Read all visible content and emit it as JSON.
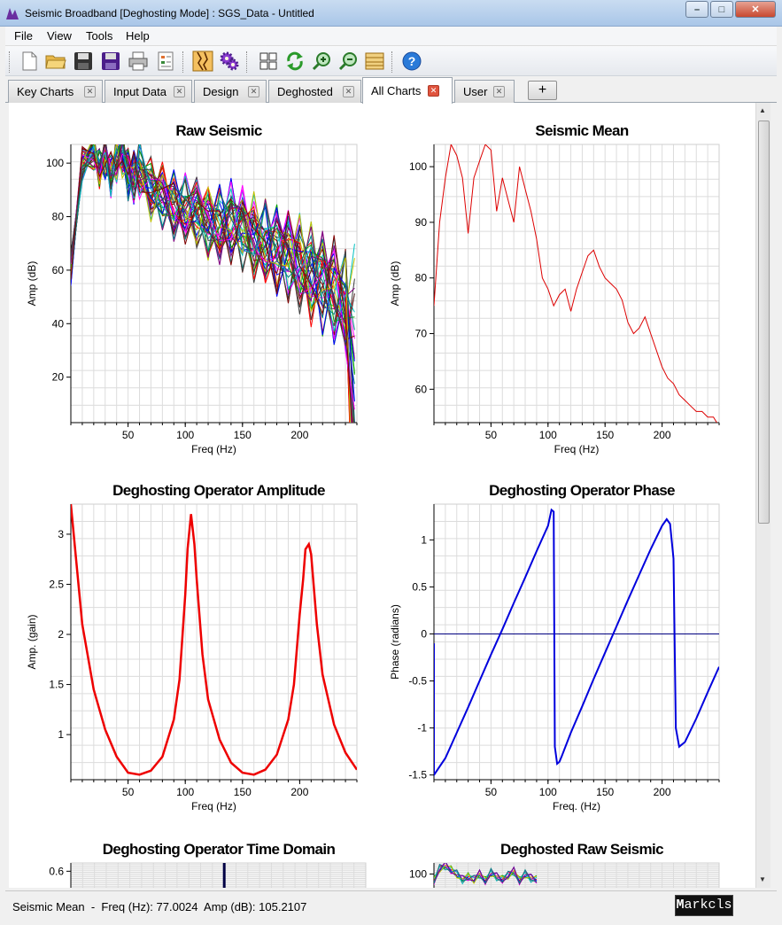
{
  "window": {
    "title": "Seismic Broadband [Deghosting Mode] : SGS_Data - Untitled"
  },
  "menu": [
    "File",
    "View",
    "Tools",
    "Help"
  ],
  "toolbar_icons": [
    "new-file-icon",
    "open-folder-icon",
    "save-icon",
    "save-as-icon",
    "print-icon",
    "properties-icon",
    "seismic-trace-icon",
    "settings-gears-icon",
    "grid-layout-icon",
    "refresh-icon",
    "zoom-in-icon",
    "zoom-out-icon",
    "layers-icon",
    "help-icon"
  ],
  "tabs": [
    {
      "label": "Key Charts",
      "active": false
    },
    {
      "label": "Input Data",
      "active": false
    },
    {
      "label": "Design",
      "active": false
    },
    {
      "label": "Deghosted",
      "active": false
    },
    {
      "label": "All Charts",
      "active": true
    },
    {
      "label": "User",
      "active": false
    }
  ],
  "tab_add_label": "+",
  "status": {
    "text": "Seismic Mean  -  Freq (Hz): 77.0024  Amp (dB): 105.2107",
    "logo": "arkcls"
  },
  "colors": {
    "raw_series": [
      "#ff0000",
      "#00a000",
      "#0000ff",
      "#ff00ff",
      "#00c0c0",
      "#c0c000",
      "#800080",
      "#008080",
      "#800000",
      "#404040"
    ],
    "mean": "#dd0000",
    "amplitude": "#ee0000",
    "phase": "#0000dd",
    "accent": "#c9dcf1"
  },
  "chart_data": [
    {
      "type": "line",
      "title": "Raw Seismic",
      "xlabel": "Freq (Hz)",
      "ylabel": "Amp (dB)",
      "xlim": [
        0,
        250
      ],
      "ylim": [
        3,
        107
      ],
      "xticks": [
        50,
        100,
        150,
        200
      ],
      "yticks": [
        20,
        40,
        60,
        80,
        100
      ],
      "series_count": 40,
      "x": [
        0,
        10,
        20,
        25,
        30,
        35,
        40,
        45,
        50,
        55,
        60,
        70,
        80,
        90,
        100,
        110,
        120,
        130,
        140,
        150,
        160,
        170,
        180,
        190,
        200,
        210,
        220,
        230,
        240,
        248
      ],
      "y": [
        60,
        100,
        104,
        98,
        102,
        96,
        102,
        104,
        96,
        95,
        98,
        90,
        88,
        84,
        83,
        82,
        78,
        77,
        78,
        76,
        72,
        70,
        67,
        66,
        62,
        58,
        56,
        52,
        48,
        5
      ]
    },
    {
      "type": "line",
      "title": "Seismic Mean",
      "xlabel": "Freq (Hz)",
      "ylabel": "Amp (dB)",
      "xlim": [
        0,
        250
      ],
      "ylim": [
        54,
        104
      ],
      "xticks": [
        50,
        100,
        150,
        200
      ],
      "yticks": [
        60,
        70,
        80,
        90,
        100
      ],
      "x": [
        0,
        5,
        10,
        15,
        20,
        25,
        30,
        35,
        40,
        45,
        50,
        55,
        60,
        65,
        70,
        75,
        80,
        85,
        90,
        95,
        100,
        105,
        110,
        115,
        120,
        125,
        130,
        135,
        140,
        145,
        150,
        155,
        160,
        165,
        170,
        175,
        180,
        185,
        190,
        195,
        200,
        205,
        210,
        215,
        220,
        225,
        230,
        235,
        240,
        245,
        248
      ],
      "y": [
        75,
        90,
        98,
        104,
        102,
        98,
        88,
        98,
        101,
        104,
        103,
        92,
        98,
        94,
        90,
        100,
        96,
        92,
        87,
        80,
        78,
        75,
        77,
        78,
        74,
        78,
        81,
        84,
        85,
        82,
        80,
        79,
        78,
        76,
        72,
        70,
        71,
        73,
        70,
        67,
        64,
        62,
        61,
        59,
        58,
        57,
        56,
        56,
        55,
        55,
        54
      ]
    },
    {
      "type": "line",
      "title": "Deghosting Operator Amplitude",
      "xlabel": "Freq (Hz)",
      "ylabel": "Amp. (gain)",
      "xlim": [
        0,
        250
      ],
      "ylim": [
        0.55,
        3.3
      ],
      "xticks": [
        50,
        100,
        150,
        200
      ],
      "yticks": [
        1,
        1.5,
        2,
        2.5,
        3
      ],
      "x": [
        0,
        10,
        20,
        30,
        40,
        50,
        60,
        70,
        80,
        90,
        95,
        100,
        102,
        105,
        108,
        110,
        115,
        120,
        130,
        140,
        150,
        160,
        170,
        180,
        190,
        195,
        200,
        203,
        205,
        208,
        210,
        215,
        220,
        230,
        240,
        250
      ],
      "y": [
        3.3,
        2.1,
        1.45,
        1.05,
        0.78,
        0.62,
        0.6,
        0.64,
        0.78,
        1.15,
        1.55,
        2.4,
        2.85,
        3.2,
        2.9,
        2.55,
        1.8,
        1.35,
        0.95,
        0.72,
        0.62,
        0.6,
        0.65,
        0.8,
        1.15,
        1.5,
        2.2,
        2.55,
        2.85,
        2.9,
        2.8,
        2.1,
        1.6,
        1.1,
        0.82,
        0.65
      ]
    },
    {
      "type": "line",
      "title": "Deghosting Operator Phase",
      "xlabel": "Freq. (Hz)",
      "ylabel": "Phase (radians)",
      "xlim": [
        0,
        250
      ],
      "ylim": [
        -1.55,
        1.38
      ],
      "xticks": [
        50,
        100,
        150,
        200
      ],
      "yticks": [
        -1.5,
        -1,
        -0.5,
        0,
        0.5,
        1
      ],
      "x": [
        0,
        0,
        0,
        10,
        20,
        30,
        40,
        50,
        60,
        70,
        80,
        90,
        100,
        103,
        105,
        106,
        108,
        110,
        112,
        120,
        130,
        140,
        150,
        160,
        170,
        180,
        190,
        200,
        204,
        207,
        210,
        212,
        215,
        220,
        230,
        240,
        250
      ],
      "y": [
        -0.1,
        -1.4,
        -1.5,
        -1.32,
        -1.05,
        -0.78,
        -0.5,
        -0.22,
        0.05,
        0.33,
        0.6,
        0.88,
        1.15,
        1.32,
        1.3,
        -1.2,
        -1.38,
        -1.36,
        -1.3,
        -1.05,
        -0.77,
        -0.48,
        -0.2,
        0.08,
        0.36,
        0.63,
        0.9,
        1.15,
        1.22,
        1.17,
        0.8,
        -1.0,
        -1.2,
        -1.15,
        -0.9,
        -0.62,
        -0.35
      ]
    },
    {
      "type": "line",
      "title": "Deghosting Operator Time Domain",
      "xlabel": "",
      "ylabel": "",
      "yticks": [
        0.6
      ],
      "ylim": [
        0.5,
        0.65
      ],
      "xlim": [
        0,
        250
      ],
      "x": [
        130,
        130
      ],
      "y": [
        0.5,
        0.65
      ]
    },
    {
      "type": "line",
      "title": "Deghosted Raw Seismic",
      "xlabel": "",
      "ylabel": "",
      "yticks": [
        100
      ],
      "xlim": [
        0,
        250
      ],
      "ylim": [
        90,
        108
      ],
      "x": [
        0,
        5,
        10,
        15,
        20,
        25,
        30,
        35,
        40,
        45,
        50,
        55,
        60,
        65,
        70,
        75,
        80,
        85,
        90
      ],
      "y": [
        95,
        104,
        106,
        103,
        100,
        96,
        98,
        96,
        100,
        95,
        101,
        98,
        96,
        99,
        102,
        95,
        100,
        97,
        96
      ]
    }
  ]
}
